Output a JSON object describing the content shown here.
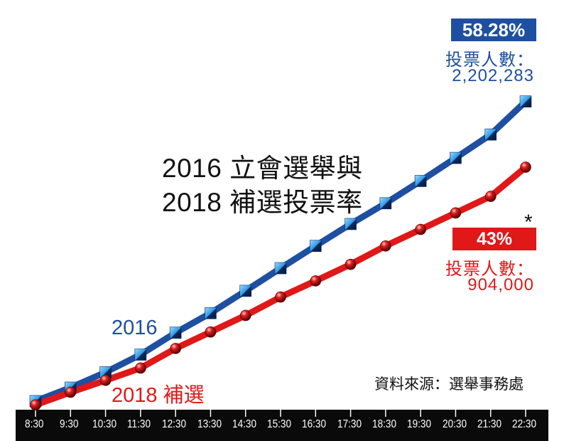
{
  "chart_data": {
    "type": "line",
    "title_line1": "2016 立會選舉與",
    "title_line2": "2018 補選投票率",
    "x": [
      "8:30",
      "9:30",
      "10:30",
      "11:30",
      "12:30",
      "13:30",
      "14:30",
      "15:30",
      "16:30",
      "17:30",
      "18:30",
      "19:30",
      "20:30",
      "21:30",
      "22:30"
    ],
    "series": [
      {
        "name": "2016",
        "color": "#1f4fa0",
        "values": [
          1.5,
          5.0,
          9.0,
          13.6,
          19.3,
          24.4,
          30.2,
          36.1,
          41.9,
          47.6,
          53.0,
          58.8,
          64.8,
          70.9,
          79.5
        ],
        "final_rate": "58.28%",
        "voters_label": "投票人數：",
        "voters_value": "2,202,283"
      },
      {
        "name": "2018 補選",
        "color": "#e01818",
        "values": [
          0.5,
          3.8,
          6.9,
          10.1,
          15.2,
          19.5,
          23.8,
          28.6,
          32.8,
          37.1,
          41.9,
          46.2,
          50.5,
          54.8,
          62.4
        ],
        "final_rate": "43%",
        "rate_note": "*",
        "voters_label": "投票人數：",
        "voters_value": "904,000"
      }
    ],
    "source": "資料來源：選舉事務處"
  }
}
